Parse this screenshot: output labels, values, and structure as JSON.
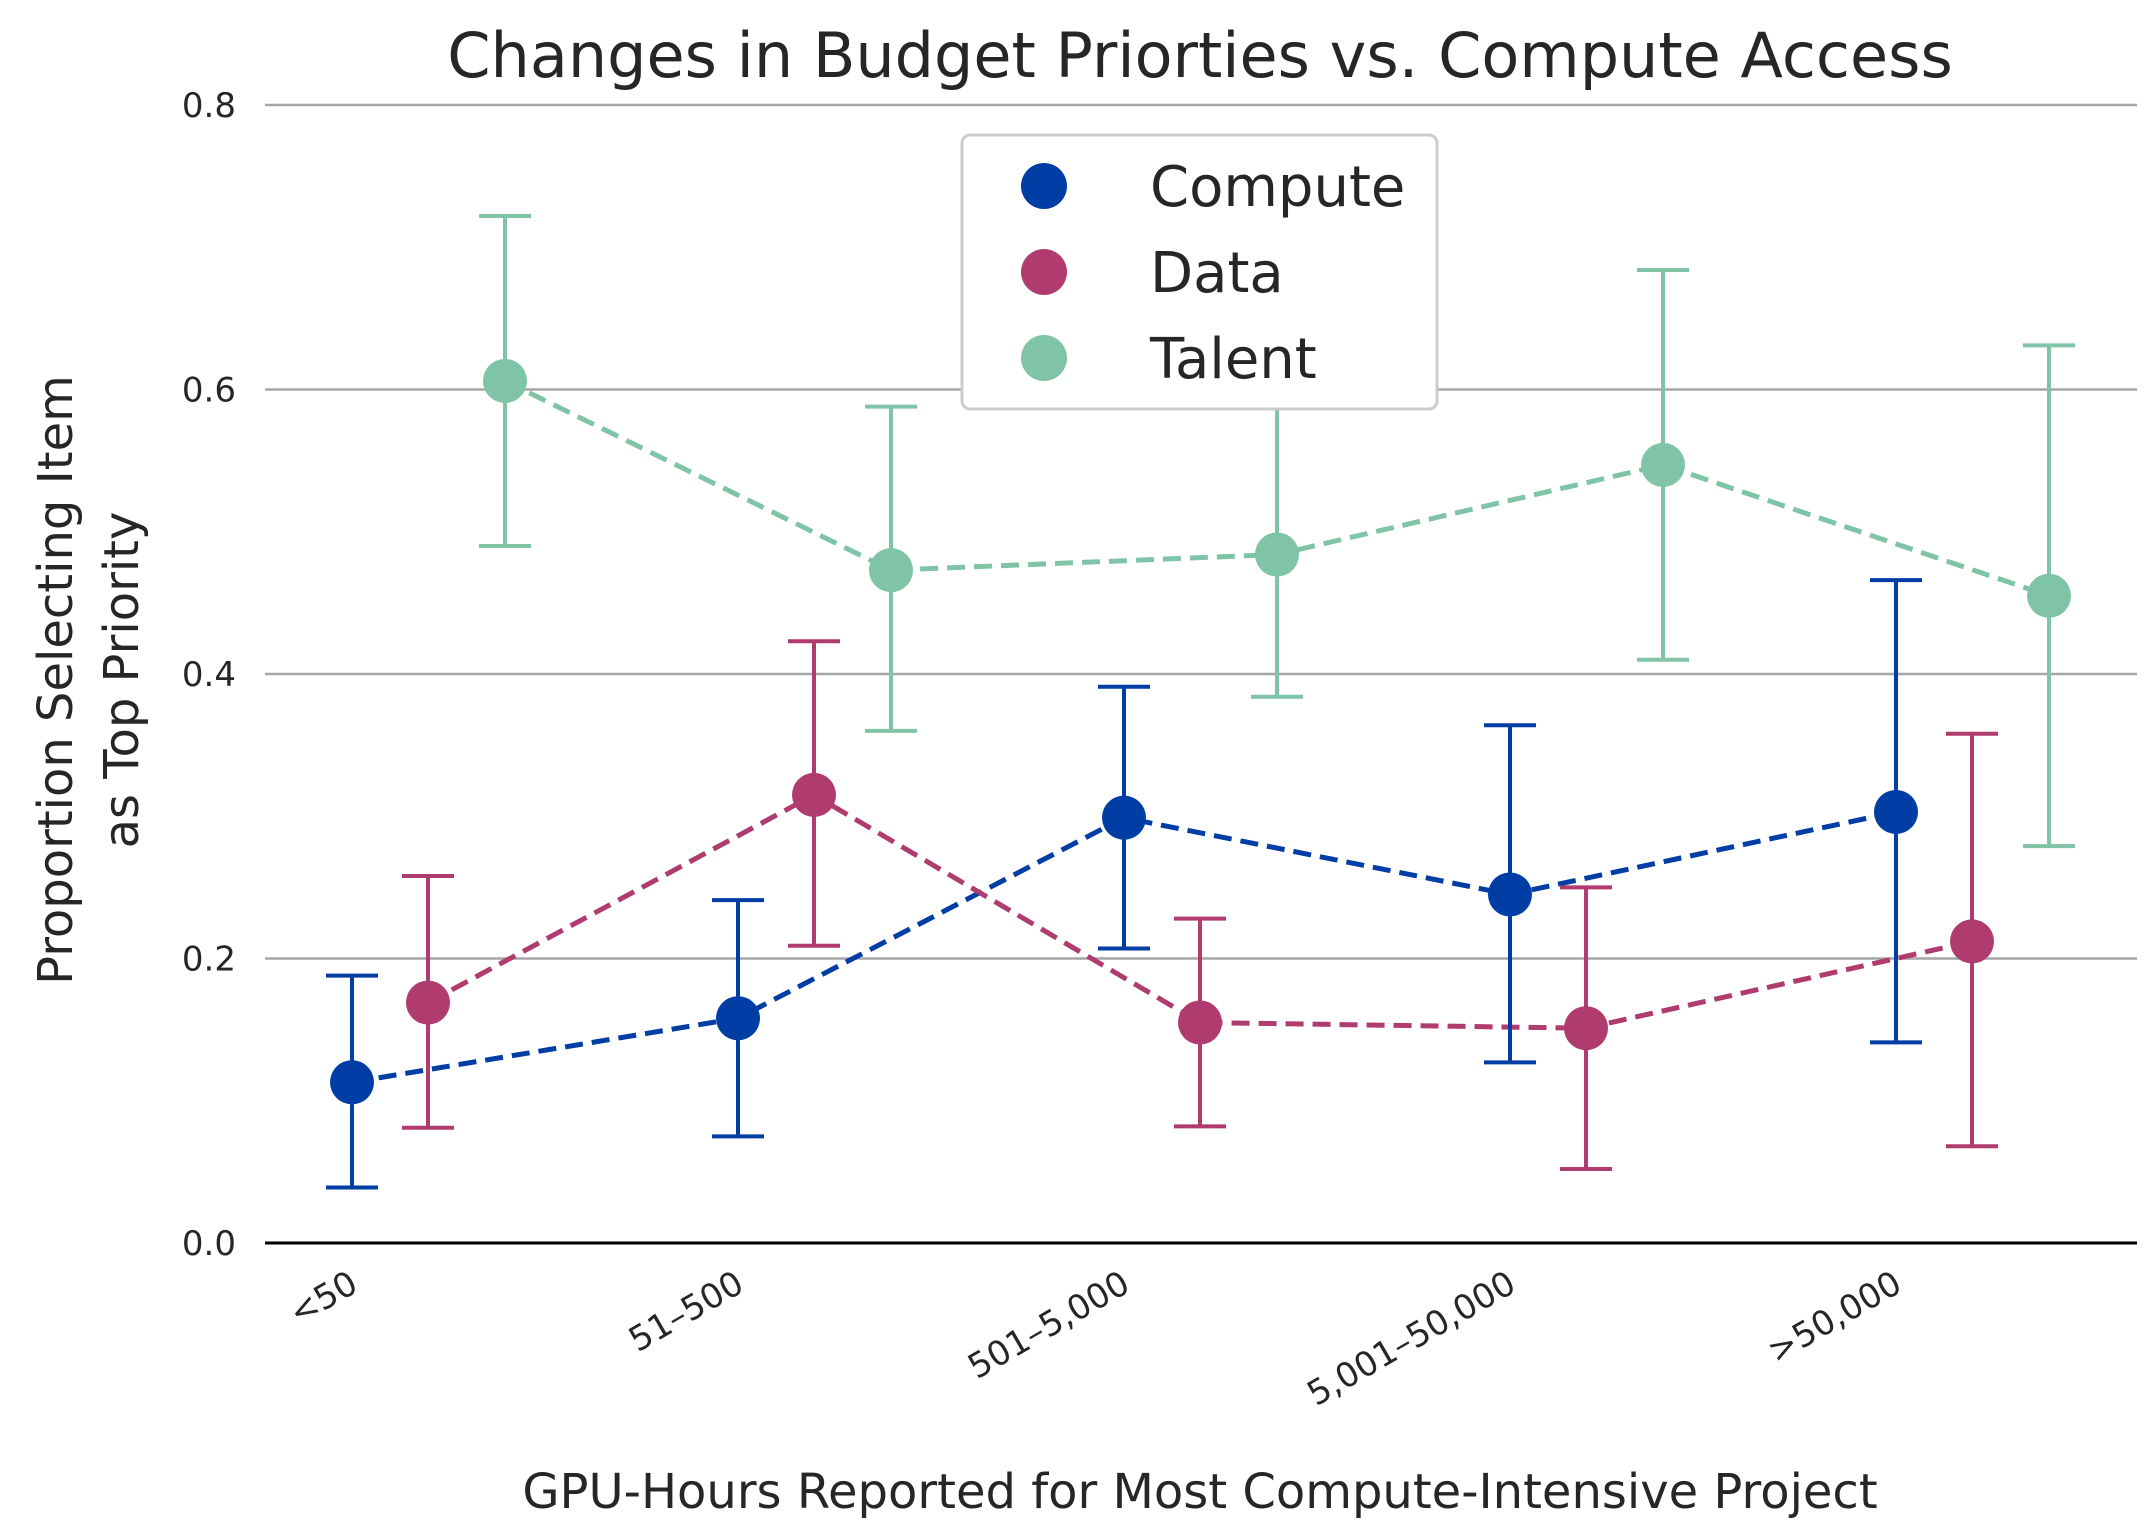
{
  "chart_data": {
    "type": "line",
    "title": "Changes in Budget Priorties vs. Compute Access",
    "xlabel": "GPU-Hours Reported for Most Compute-Intensive Project",
    "ylabel_lines": [
      "Proportion Selecting Item",
      "as Top Priority"
    ],
    "categories": [
      "<50",
      "51–500",
      "501–5,000",
      "5,001–50,000",
      ">50,000"
    ],
    "ylim": [
      0,
      0.8
    ],
    "yticks": [
      0.0,
      0.2,
      0.4,
      0.6,
      0.8
    ],
    "ytick_labels": [
      "0.0",
      "0.2",
      "0.4",
      "0.6",
      "0.8"
    ],
    "grid": "horizontal",
    "legend_position": "top-center",
    "series": [
      {
        "name": "Compute",
        "color": "#003da5",
        "values": [
          0.113,
          0.158,
          0.299,
          0.245,
          0.303
        ],
        "error_low": [
          0.039,
          0.075,
          0.207,
          0.127,
          0.141
        ],
        "error_high": [
          0.188,
          0.241,
          0.391,
          0.364,
          0.466
        ]
      },
      {
        "name": "Data",
        "color": "#b03b6e",
        "values": [
          0.169,
          0.315,
          0.155,
          0.151,
          0.212
        ],
        "error_low": [
          0.081,
          0.209,
          0.082,
          0.052,
          0.068
        ],
        "error_high": [
          0.258,
          0.423,
          0.228,
          0.25,
          0.358
        ]
      },
      {
        "name": "Talent",
        "color": "#7fc4a6",
        "values": [
          0.606,
          0.473,
          0.484,
          0.547,
          0.455
        ],
        "error_low": [
          0.49,
          0.36,
          0.384,
          0.41,
          0.279
        ],
        "error_high": [
          0.722,
          0.588,
          0.6,
          0.684,
          0.631
        ]
      }
    ]
  }
}
